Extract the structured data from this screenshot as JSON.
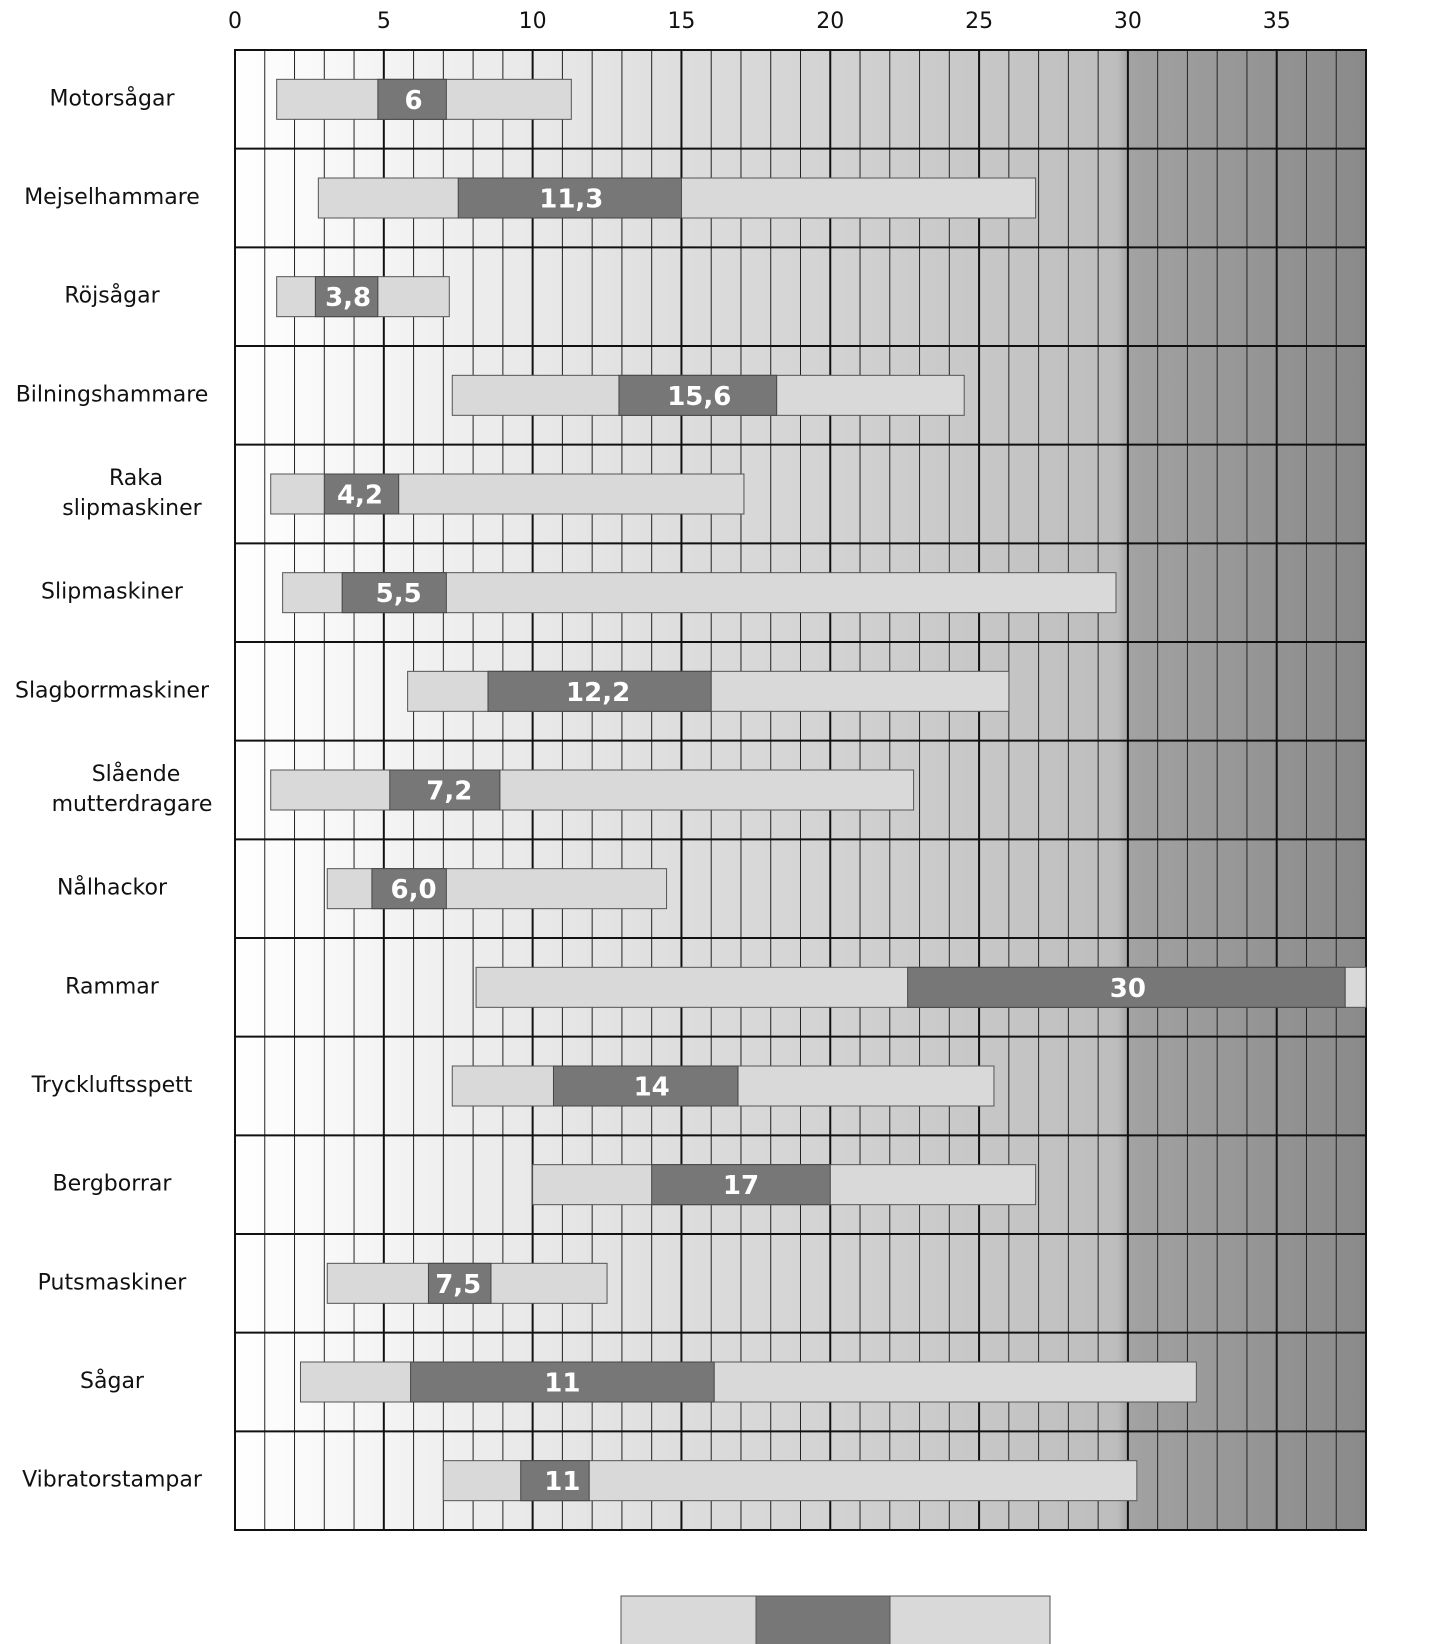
{
  "chart_data": {
    "type": "range-bar",
    "categories": [
      "Motorsågar",
      "Mejselhammare",
      "Röjsågar",
      "Bilningshammare",
      "Raka\nslipmaskiner",
      "Slipmaskiner",
      "Slagborrmaskiner",
      "Slående\nmutterdragare",
      "Nålhackor",
      "Rammar",
      "Tryckluftsspett",
      "Bergborrar",
      "Putsmaskiner",
      "Sågar",
      "Vibratorstampar"
    ],
    "low": [
      1.4,
      2.8,
      1.4,
      7.3,
      1.2,
      1.6,
      5.8,
      1.2,
      3.1,
      8.1,
      7.3,
      10.0,
      3.1,
      2.2,
      7.0
    ],
    "high": [
      11.3,
      26.9,
      7.2,
      24.5,
      17.1,
      29.6,
      26.0,
      22.8,
      14.5,
      38,
      25.5,
      26.9,
      12.5,
      32.3,
      30.3
    ],
    "q1": [
      4.8,
      7.5,
      2.7,
      12.9,
      3.0,
      3.6,
      8.5,
      5.2,
      4.6,
      22.6,
      10.7,
      14.0,
      6.5,
      5.9,
      9.6
    ],
    "q3": [
      7.1,
      15.0,
      4.8,
      18.2,
      5.5,
      7.1,
      16.0,
      8.9,
      7.1,
      37.3,
      16.9,
      20.0,
      8.6,
      16.1,
      11.9
    ],
    "values": [
      6,
      11.3,
      3.8,
      15.6,
      4.2,
      5.5,
      12.2,
      7.2,
      6.0,
      30,
      14,
      17,
      7.5,
      11,
      11
    ],
    "value_labels": [
      "6",
      "11,3",
      "3,8",
      "15,6",
      "4,2",
      "5,5",
      "12,2",
      "7,2",
      "6,0",
      "30",
      "14",
      "17",
      "7,5",
      "11",
      "11"
    ],
    "range_color": "#d9d9d9",
    "inner_color": "#777777",
    "xlim": [
      0,
      38
    ],
    "xticks": [
      0,
      5,
      10,
      15,
      20,
      25,
      30,
      35
    ],
    "grid": true
  }
}
